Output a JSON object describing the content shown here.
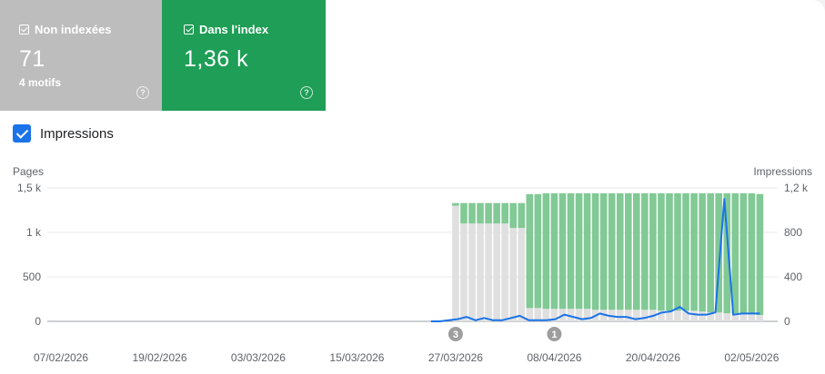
{
  "cards": {
    "non_indexed": {
      "label": "Non indexées",
      "value": "71",
      "sub": "4 motifs",
      "help": "?",
      "color": "#bdbdbd"
    },
    "indexed": {
      "label": "Dans l'index",
      "value": "1,36 k",
      "help": "?",
      "color": "#1e9e56"
    }
  },
  "impressions_toggle": {
    "label": "Impressions",
    "checked": true
  },
  "chart_axes": {
    "left_title": "Pages",
    "right_title": "Impressions"
  },
  "chart_data": {
    "type": "bar",
    "categories": [
      "27/03/2026",
      "28/03/2026",
      "29/03/2026",
      "30/03/2026",
      "31/03/2026",
      "01/04/2026",
      "02/04/2026",
      "03/04/2026",
      "04/04/2026",
      "05/04/2026",
      "06/04/2026",
      "07/04/2026",
      "08/04/2026",
      "09/04/2026",
      "10/04/2026",
      "11/04/2026",
      "12/04/2026",
      "13/04/2026",
      "14/04/2026",
      "15/04/2026",
      "16/04/2026",
      "17/04/2026",
      "18/04/2026",
      "19/04/2026",
      "20/04/2026",
      "21/04/2026",
      "22/04/2026",
      "23/04/2026",
      "24/04/2026",
      "25/04/2026",
      "26/04/2026",
      "27/04/2026",
      "28/04/2026",
      "29/04/2026",
      "30/04/2026",
      "01/05/2026",
      "02/05/2026",
      "03/05/2026"
    ],
    "series": [
      {
        "name": "Non indexées",
        "color": "#e0e0e0",
        "values": [
          1300,
          1100,
          1100,
          1100,
          1100,
          1100,
          1100,
          1050,
          1050,
          150,
          150,
          140,
          140,
          140,
          140,
          140,
          140,
          130,
          130,
          130,
          130,
          130,
          130,
          130,
          130,
          120,
          120,
          120,
          120,
          120,
          110,
          100,
          100,
          90,
          90,
          80,
          80,
          71
        ]
      },
      {
        "name": "Dans l'index",
        "color": "#81c995",
        "values": [
          30,
          230,
          230,
          230,
          230,
          230,
          230,
          280,
          280,
          1280,
          1280,
          1300,
          1300,
          1300,
          1300,
          1300,
          1300,
          1310,
          1310,
          1310,
          1310,
          1310,
          1310,
          1310,
          1310,
          1320,
          1320,
          1320,
          1320,
          1320,
          1330,
          1340,
          1340,
          1350,
          1350,
          1360,
          1360,
          1360
        ]
      }
    ],
    "impressions": {
      "name": "Impressions",
      "color": "#1a73e8",
      "line_start": "24/03/2026",
      "values": [
        0,
        0,
        10,
        20,
        40,
        10,
        30,
        10,
        10,
        30,
        50,
        10,
        10,
        10,
        20,
        60,
        40,
        20,
        30,
        70,
        50,
        40,
        40,
        20,
        30,
        50,
        80,
        90,
        130,
        70,
        60,
        60,
        80,
        1100,
        60,
        70,
        70,
        70
      ]
    },
    "x_tick_labels": [
      "07/02/2026",
      "19/02/2026",
      "03/03/2026",
      "15/03/2026",
      "27/03/2026",
      "08/04/2026",
      "20/04/2026",
      "02/05/2026"
    ],
    "x_tick_dates": [
      "07/02/2026",
      "19/02/2026",
      "03/03/2026",
      "15/03/2026",
      "27/03/2026",
      "08/04/2026",
      "20/04/2026",
      "02/05/2026"
    ],
    "y_left": {
      "ticks": [
        "0",
        "500",
        "1 k",
        "1,5 k"
      ],
      "values": [
        0,
        500,
        1000,
        1500
      ],
      "range": [
        0,
        1500
      ]
    },
    "y_right": {
      "ticks": [
        "0",
        "400",
        "800",
        "1,2 k"
      ],
      "values": [
        0,
        400,
        800,
        1200
      ],
      "range": [
        0,
        1200
      ]
    },
    "annotations": [
      {
        "label": "3",
        "date": "27/03/2026"
      },
      {
        "label": "1",
        "date": "08/04/2026"
      }
    ],
    "grid": true
  }
}
